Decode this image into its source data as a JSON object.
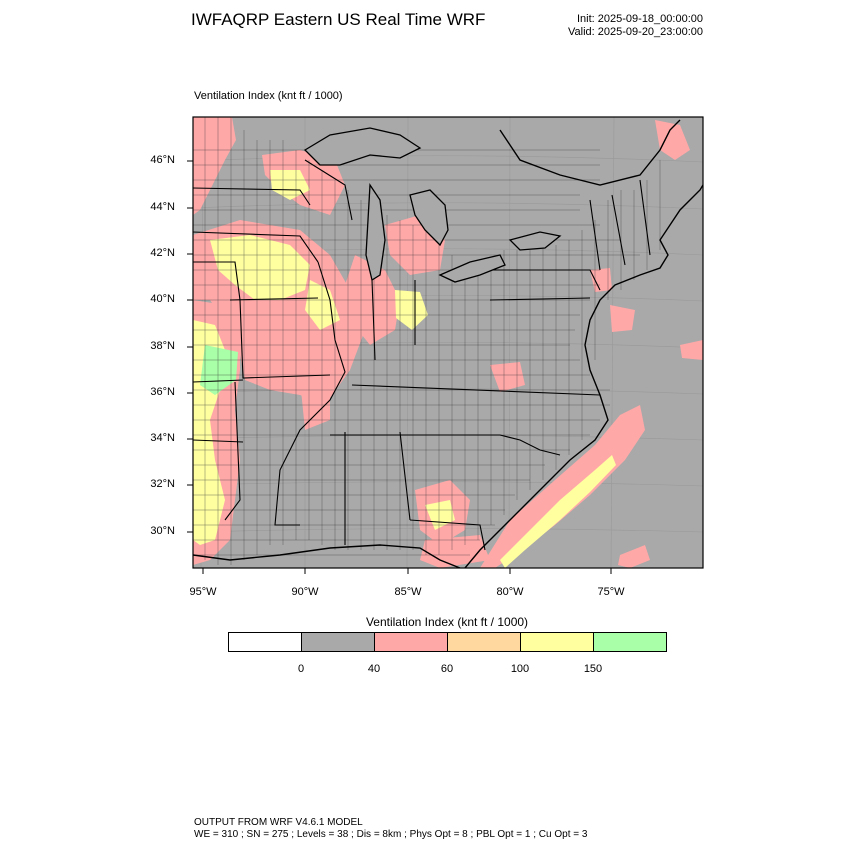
{
  "header": {
    "title": "IWFAQRP Eastern US Real Time WRF",
    "init": "Init: 2025-09-18_00:00:00",
    "valid": "Valid: 2025-09-20_23:00:00"
  },
  "map": {
    "subtitle": "Ventilation Index   (knt ft / 1000)",
    "lat_ticks": [
      "46°N",
      "44°N",
      "42°N",
      "40°N",
      "38°N",
      "36°N",
      "34°N",
      "32°N",
      "30°N"
    ],
    "lon_ticks": [
      "95°W",
      "90°W",
      "85°W",
      "80°W",
      "75°W"
    ],
    "colors": {
      "background": "#a9a9a9",
      "pink": "#ffa8a8",
      "orange": "#ffd8a0",
      "yellow": "#ffffa0",
      "green": "#a8ffa8",
      "border": "#000000"
    }
  },
  "colorbar": {
    "title": "Ventilation Index  (knt ft / 1000)",
    "colors": [
      "#ffffff",
      "#a9a9a9",
      "#ffa8a8",
      "#ffd8a0",
      "#ffffa0",
      "#a8ffa8"
    ],
    "labels": [
      "0",
      "40",
      "60",
      "100",
      "150"
    ]
  },
  "footer": {
    "line1": "OUTPUT FROM WRF V4.6.1 MODEL",
    "line2": "WE = 310 ; SN = 275 ; Levels = 38 ; Dis = 8km ; Phys Opt = 8 ; PBL Opt = 1 ; Cu Opt = 3"
  }
}
